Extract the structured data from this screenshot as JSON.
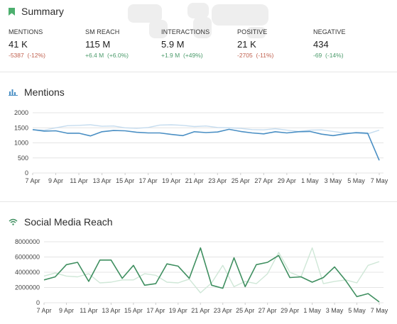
{
  "summary": {
    "title": "Summary",
    "metrics": [
      {
        "label": "MENTIONS",
        "value": "41 K",
        "change": "-5387",
        "pct": "(-12%)",
        "trend": "neg"
      },
      {
        "label": "SM REACH",
        "value": "115 M",
        "change": "+6.4 M",
        "pct": "(+6.0%)",
        "trend": "pos"
      },
      {
        "label": "INTERACTIONS",
        "value": "5.9 M",
        "change": "+1.9 M",
        "pct": "(+49%)",
        "trend": "pos"
      },
      {
        "label": "POSITIVE",
        "value": "21 K",
        "change": "-2705",
        "pct": "(-11%)",
        "trend": "neg"
      },
      {
        "label": "NEGATIVE",
        "value": "434",
        "change": "-69",
        "pct": "(-14%)",
        "trend": "pos"
      }
    ]
  },
  "mentions": {
    "title": "Mentions"
  },
  "reach": {
    "title": "Social Media Reach"
  },
  "colors": {
    "mentions": "#4a8fc4",
    "mentions_prev": "#c5dcef",
    "reach": "#3f8f60",
    "reach_prev": "#cfe7d7"
  },
  "chart_data": [
    {
      "type": "line",
      "title": "Mentions",
      "x": [
        "7 Apr",
        "8 Apr",
        "9 Apr",
        "10 Apr",
        "11 Apr",
        "12 Apr",
        "13 Apr",
        "14 Apr",
        "15 Apr",
        "16 Apr",
        "17 Apr",
        "18 Apr",
        "19 Apr",
        "20 Apr",
        "21 Apr",
        "22 Apr",
        "23 Apr",
        "24 Apr",
        "25 Apr",
        "26 Apr",
        "27 Apr",
        "28 Apr",
        "29 Apr",
        "30 Apr",
        "1 May",
        "2 May",
        "3 May",
        "4 May",
        "5 May",
        "6 May",
        "7 May"
      ],
      "x_tick_labels": [
        "7 Apr",
        "9 Apr",
        "11 Apr",
        "13 Apr",
        "15 Apr",
        "17 Apr",
        "19 Apr",
        "21 Apr",
        "23 Apr",
        "25 Apr",
        "27 Apr",
        "29 Apr",
        "1 May",
        "3 May",
        "5 May",
        "7 May"
      ],
      "y_ticks": [
        0,
        500,
        1000,
        1500,
        2000
      ],
      "ylim": [
        0,
        2000
      ],
      "grid": true,
      "series": [
        {
          "values": [
            1440,
            1390,
            1400,
            1320,
            1320,
            1230,
            1370,
            1410,
            1400,
            1350,
            1330,
            1330,
            1280,
            1240,
            1370,
            1340,
            1360,
            1450,
            1380,
            1330,
            1300,
            1370,
            1330,
            1370,
            1380,
            1290,
            1240,
            1300,
            1340,
            1320,
            420
          ]
        },
        {
          "values": [
            1430,
            1420,
            1500,
            1570,
            1580,
            1600,
            1550,
            1560,
            1500,
            1480,
            1510,
            1590,
            1600,
            1580,
            1540,
            1560,
            1510,
            1500,
            1480,
            1440,
            1430,
            1470,
            1420,
            1380,
            1420,
            1430,
            1380,
            1330,
            1320,
            1300,
            1420
          ]
        }
      ]
    },
    {
      "type": "line",
      "title": "Social Media Reach",
      "x": [
        "7 Apr",
        "8 Apr",
        "9 Apr",
        "10 Apr",
        "11 Apr",
        "12 Apr",
        "13 Apr",
        "14 Apr",
        "15 Apr",
        "16 Apr",
        "17 Apr",
        "18 Apr",
        "19 Apr",
        "20 Apr",
        "21 Apr",
        "22 Apr",
        "23 Apr",
        "24 Apr",
        "25 Apr",
        "26 Apr",
        "27 Apr",
        "28 Apr",
        "29 Apr",
        "30 Apr",
        "1 May",
        "2 May",
        "3 May",
        "4 May",
        "5 May",
        "6 May",
        "7 May"
      ],
      "x_tick_labels": [
        "7 Apr",
        "9 Apr",
        "11 Apr",
        "13 Apr",
        "15 Apr",
        "17 Apr",
        "19 Apr",
        "21 Apr",
        "23 Apr",
        "25 Apr",
        "27 Apr",
        "29 Apr",
        "1 May",
        "3 May",
        "5 May",
        "7 May"
      ],
      "y_ticks": [
        0,
        2000000,
        4000000,
        6000000,
        8000000
      ],
      "ylim": [
        0,
        8000000
      ],
      "grid": true,
      "series": [
        {
          "values": [
            3000000,
            3400000,
            5000000,
            5300000,
            2800000,
            5600000,
            5600000,
            3200000,
            4900000,
            2300000,
            2500000,
            5100000,
            4800000,
            3200000,
            7200000,
            2300000,
            1900000,
            5900000,
            2100000,
            5000000,
            5300000,
            6200000,
            3300000,
            3400000,
            2700000,
            3300000,
            4700000,
            2900000,
            800000,
            1200000,
            100000
          ]
        },
        {
          "values": [
            3500000,
            3900000,
            3500000,
            3400000,
            3800000,
            2600000,
            2700000,
            3000000,
            3000000,
            3800000,
            3600000,
            2700000,
            2600000,
            3100000,
            1300000,
            2600000,
            4900000,
            2100000,
            2800000,
            2500000,
            3800000,
            6600000,
            4000000,
            3400000,
            7200000,
            2500000,
            2800000,
            3000000,
            2600000,
            4900000,
            5400000
          ]
        }
      ]
    }
  ]
}
